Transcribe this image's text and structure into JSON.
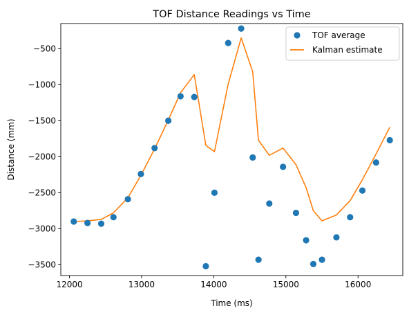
{
  "chart_data": {
    "type": "scatter",
    "title": "TOF Distance Readings vs Time",
    "xlabel": "Time (ms)",
    "ylabel": "Distance (mm)",
    "xlim": [
      11880,
      16620
    ],
    "ylim": [
      -3650,
      -150
    ],
    "xticks": [
      12000,
      13000,
      14000,
      15000,
      16000
    ],
    "xtick_labels": [
      "12000",
      "13000",
      "14000",
      "15000",
      "16000"
    ],
    "yticks": [
      -3500,
      -3000,
      -2500,
      -2000,
      -1500,
      -1000,
      -500
    ],
    "ytick_labels": [
      "−3500",
      "−3000",
      "−2500",
      "−2000",
      "−1500",
      "−1000",
      "−500"
    ],
    "grid": false,
    "legend_position": "top-right",
    "series": [
      {
        "name": "TOF average",
        "kind": "scatter",
        "color": "#1f77b4",
        "x": [
          12060,
          12250,
          12440,
          12610,
          12810,
          12990,
          13180,
          13370,
          13540,
          13730,
          13890,
          14010,
          14200,
          14380,
          14540,
          14620,
          14770,
          14960,
          15140,
          15280,
          15380,
          15500,
          15700,
          15890,
          16060,
          16250,
          16440
        ],
        "y": [
          -2900,
          -2920,
          -2930,
          -2840,
          -2590,
          -2240,
          -1880,
          -1500,
          -1160,
          -1170,
          -3520,
          -2500,
          -420,
          -220,
          -2010,
          -3430,
          -2650,
          -2140,
          -2780,
          -3160,
          -3490,
          -3430,
          -3120,
          -2840,
          -2470,
          -2080,
          -1770
        ]
      },
      {
        "name": "Kalman estimate",
        "kind": "line",
        "color": "#ff7f0e",
        "x": [
          12060,
          12250,
          12440,
          12610,
          12810,
          12990,
          13180,
          13370,
          13540,
          13730,
          13890,
          14010,
          14200,
          14380,
          14540,
          14620,
          14770,
          14960,
          15140,
          15280,
          15380,
          15500,
          15700,
          15890,
          16060,
          16250,
          16440
        ],
        "y": [
          -2900,
          -2890,
          -2870,
          -2780,
          -2570,
          -2260,
          -1890,
          -1490,
          -1110,
          -860,
          -1840,
          -1930,
          -990,
          -350,
          -820,
          -1770,
          -1980,
          -1880,
          -2110,
          -2430,
          -2750,
          -2890,
          -2810,
          -2610,
          -2320,
          -1960,
          -1590
        ]
      }
    ]
  }
}
